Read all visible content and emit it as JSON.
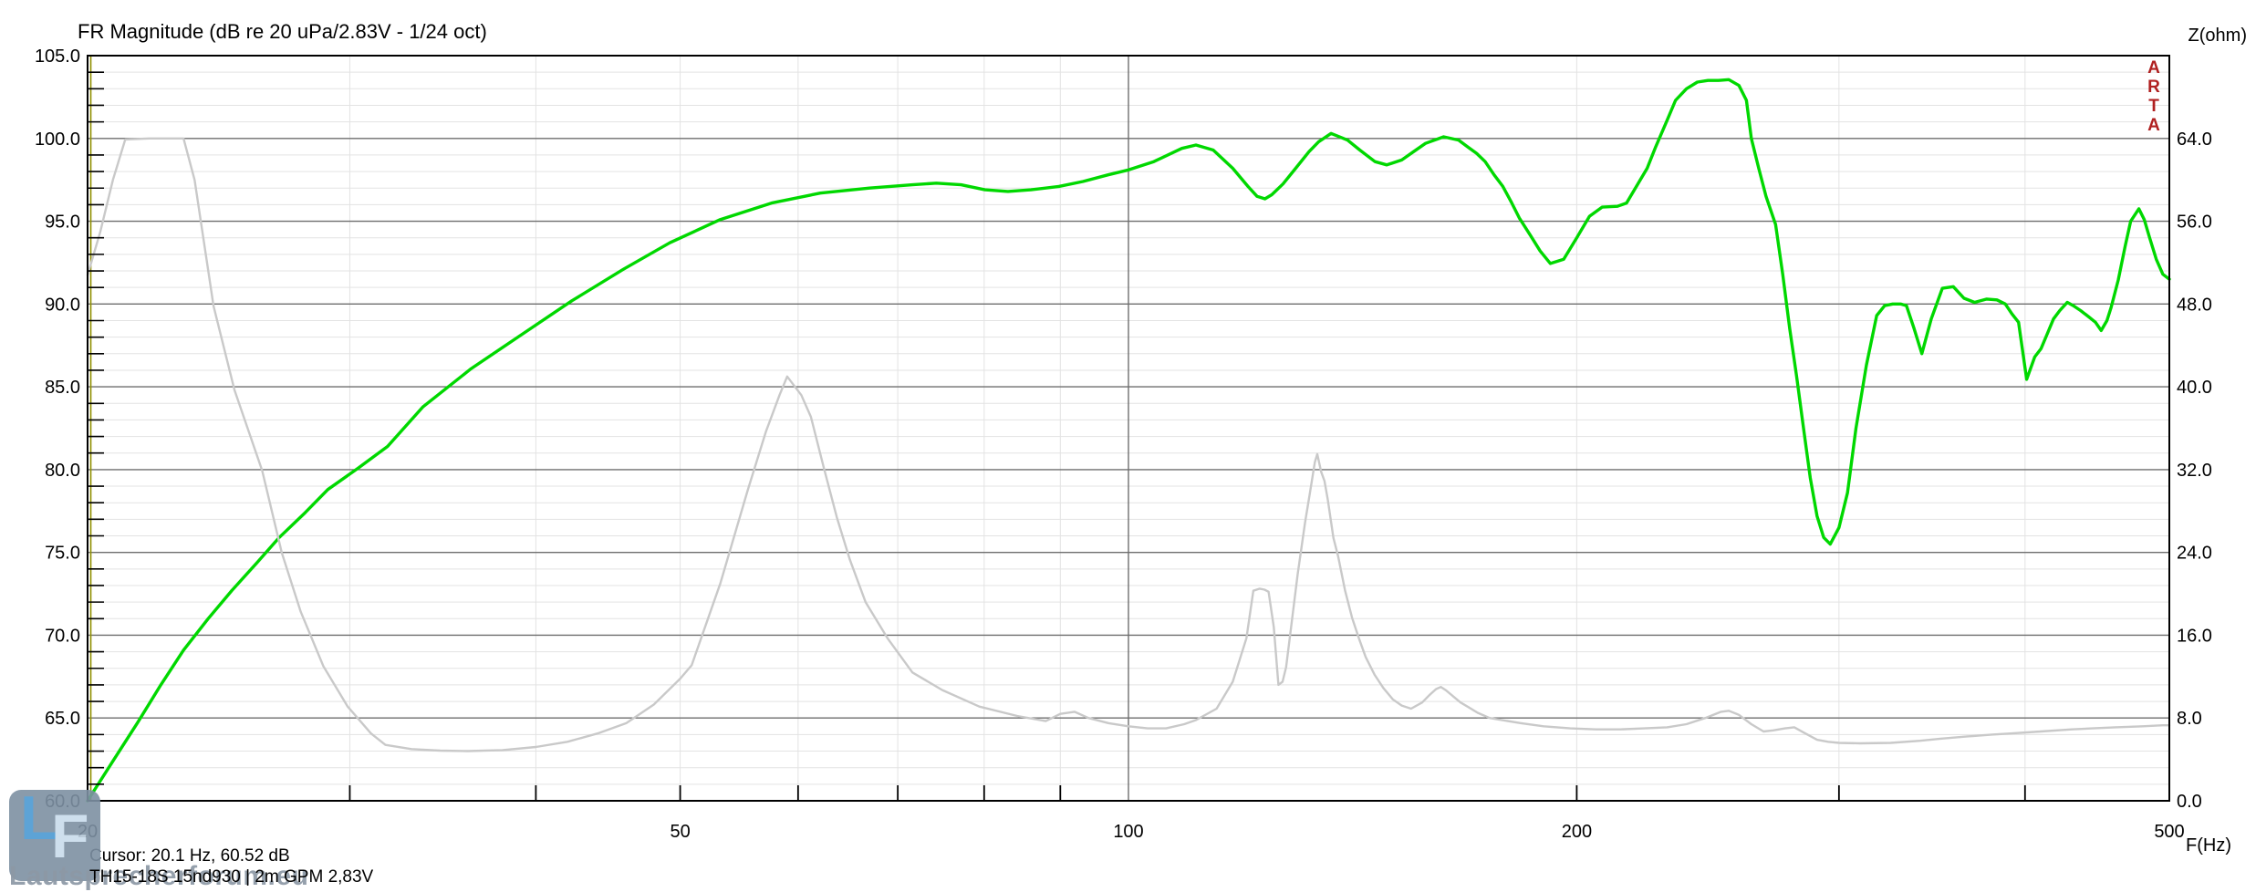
{
  "header": {
    "title": "FR Magnitude (dB re 20 uPa/2.83V - 1/24 oct)",
    "z_axis_label": "Z(ohm)"
  },
  "footer": {
    "f_axis_label": "F(Hz)",
    "cursor_text": "Cursor: 20.1 Hz, 60.52 dB",
    "info_text": "TH15-18S 15nd930   |   2m GPM 2,83V"
  },
  "branding": {
    "vertical_label": "ARTA",
    "color": "#b02020"
  },
  "watermark": {
    "logo_l": "L",
    "logo_f": "F",
    "text": "Lautsprecherforum.eu"
  },
  "chart_data": {
    "type": "line",
    "title": "FR Magnitude (dB re 20 uPa/2.83V - 1/24 oct)",
    "x_scale": "log",
    "grid": true,
    "x_axis": {
      "label": "F(Hz)",
      "min": 20,
      "max": 500,
      "tick_values": [
        20,
        50,
        100,
        200,
        500
      ],
      "tick_labels": [
        "20",
        "50",
        "100",
        "200",
        "500"
      ],
      "minor_gridlines": [
        30,
        40,
        50,
        60,
        70,
        80,
        90,
        200,
        300,
        400
      ],
      "major_gridlines": [
        100
      ]
    },
    "y_left_axis": {
      "label": "dB",
      "min": 60,
      "max": 105,
      "minor_step": 1,
      "major_step": 5,
      "tick_labels": [
        "105.0",
        "100.0",
        "95.0",
        "90.0",
        "85.0",
        "80.0",
        "75.0",
        "70.0",
        "65.0",
        "60.0"
      ]
    },
    "y_right_axis": {
      "label": "Z(ohm)",
      "min": 0,
      "max": 72,
      "label_step": 8,
      "tick_labels": [
        "64.0",
        "56.0",
        "48.0",
        "40.0",
        "32.0",
        "24.0",
        "16.0",
        "8.0",
        "0.0"
      ]
    },
    "cursor": {
      "frequency_hz": 20.1,
      "level_db": 60.52,
      "color": "#8f8f00"
    },
    "colors": {
      "spl": "#00d800",
      "impedance": "#c9c9c9",
      "grid_minor": "#e3e3e3",
      "grid_major": "#6e6e6e",
      "border": "#000000"
    },
    "series": [
      {
        "name": "FR Magnitude",
        "axis": "left",
        "unit": "dB",
        "color": "#00d800",
        "points": [
          [
            20,
            60
          ],
          [
            20.8,
            62.4
          ],
          [
            21.6,
            64.7
          ],
          [
            22.4,
            67
          ],
          [
            23.2,
            69.1
          ],
          [
            24.1,
            71
          ],
          [
            25,
            72.7
          ],
          [
            26,
            74.4
          ],
          [
            26.9,
            75.9
          ],
          [
            28,
            77.4
          ],
          [
            29,
            78.8
          ],
          [
            30.4,
            80.1
          ],
          [
            31.8,
            81.4
          ],
          [
            33.6,
            83.8
          ],
          [
            36.2,
            86.1
          ],
          [
            39.2,
            88.2
          ],
          [
            42.3,
            90.2
          ],
          [
            45.8,
            92.1
          ],
          [
            49.2,
            93.7
          ],
          [
            53.2,
            95.1
          ],
          [
            57.6,
            96.1
          ],
          [
            62.1,
            96.7
          ],
          [
            67,
            97
          ],
          [
            71.6,
            97.2
          ],
          [
            74.3,
            97.3
          ],
          [
            77.2,
            97.2
          ],
          [
            80.1,
            96.9
          ],
          [
            83,
            96.8
          ],
          [
            86,
            96.9
          ],
          [
            89.8,
            97.1
          ],
          [
            93.2,
            97.4
          ],
          [
            96.9,
            97.8
          ],
          [
            100,
            98.1
          ],
          [
            104,
            98.6
          ],
          [
            108.6,
            99.4
          ],
          [
            111,
            99.6
          ],
          [
            114,
            99.3
          ],
          [
            117.5,
            98.2
          ],
          [
            120.3,
            97.1
          ],
          [
            122,
            96.5
          ],
          [
            123.5,
            96.35
          ],
          [
            124.8,
            96.6
          ],
          [
            127,
            97.25
          ],
          [
            129.5,
            98.2
          ],
          [
            132.2,
            99.2
          ],
          [
            134.2,
            99.8
          ],
          [
            136.8,
            100.3
          ],
          [
            140.3,
            99.9
          ],
          [
            143,
            99.3
          ],
          [
            146.4,
            98.6
          ],
          [
            149.1,
            98.4
          ],
          [
            152.6,
            98.7
          ],
          [
            155.4,
            99.2
          ],
          [
            158.3,
            99.7
          ],
          [
            162.8,
            100.1
          ],
          [
            166.6,
            99.9
          ],
          [
            168.9,
            99.5
          ],
          [
            171.3,
            99.1
          ],
          [
            173.6,
            98.6
          ],
          [
            176,
            97.8
          ],
          [
            178.4,
            97.1
          ],
          [
            180.9,
            96.1
          ],
          [
            183,
            95.2
          ],
          [
            186,
            94.2
          ],
          [
            189,
            93.2
          ],
          [
            192,
            92.45
          ],
          [
            196,
            92.7
          ],
          [
            200,
            94
          ],
          [
            204,
            95.3
          ],
          [
            208,
            95.85
          ],
          [
            213,
            95.9
          ],
          [
            216,
            96.1
          ],
          [
            219,
            97
          ],
          [
            223,
            98.2
          ],
          [
            226,
            99.5
          ],
          [
            230,
            101.1
          ],
          [
            233,
            102.3
          ],
          [
            237,
            103
          ],
          [
            241,
            103.4
          ],
          [
            245,
            103.5
          ],
          [
            249,
            103.5
          ],
          [
            253,
            103.55
          ],
          [
            257,
            103.2
          ],
          [
            260,
            102.3
          ],
          [
            262,
            100
          ],
          [
            265,
            98.2
          ],
          [
            268,
            96.5
          ],
          [
            272,
            94.8
          ],
          [
            275,
            91.8
          ],
          [
            278,
            88.5
          ],
          [
            281,
            85.6
          ],
          [
            284,
            82.5
          ],
          [
            287,
            79.5
          ],
          [
            290,
            77.2
          ],
          [
            293,
            75.9
          ],
          [
            296,
            75.5
          ],
          [
            300,
            76.5
          ],
          [
            304,
            78.6
          ],
          [
            308,
            82.5
          ],
          [
            313,
            86.3
          ],
          [
            318,
            89.3
          ],
          [
            322,
            89.9
          ],
          [
            326,
            90
          ],
          [
            330,
            90
          ],
          [
            333,
            89.9
          ],
          [
            337,
            88.5
          ],
          [
            341,
            87
          ],
          [
            346,
            89.1
          ],
          [
            352,
            90.95
          ],
          [
            358,
            91.05
          ],
          [
            364,
            90.35
          ],
          [
            370,
            90.1
          ],
          [
            377,
            90.3
          ],
          [
            383,
            90.25
          ],
          [
            388,
            90
          ],
          [
            392,
            89.4
          ],
          [
            396,
            88.9
          ],
          [
            401,
            85.45
          ],
          [
            406,
            86.8
          ],
          [
            410,
            87.3
          ],
          [
            414,
            88.2
          ],
          [
            418,
            89.1
          ],
          [
            422,
            89.6
          ],
          [
            427,
            90.1
          ],
          [
            431,
            89.9
          ],
          [
            436,
            89.6
          ],
          [
            441,
            89.25
          ],
          [
            446,
            88.9
          ],
          [
            450,
            88.4
          ],
          [
            454,
            89
          ],
          [
            457,
            89.8
          ],
          [
            462,
            91.45
          ],
          [
            467,
            93.5
          ],
          [
            471,
            95
          ],
          [
            477,
            95.75
          ],
          [
            481,
            95.1
          ],
          [
            485,
            94
          ],
          [
            490,
            92.7
          ],
          [
            495,
            91.8
          ],
          [
            500,
            91.5
          ]
        ]
      },
      {
        "name": "Impedance",
        "axis": "right",
        "unit": "ohm",
        "color": "#c9c9c9",
        "points": [
          [
            20,
            50.8
          ],
          [
            20.4,
            55
          ],
          [
            20.8,
            60
          ],
          [
            21.2,
            63.9
          ],
          [
            22,
            64
          ],
          [
            23.2,
            64
          ],
          [
            23.6,
            60
          ],
          [
            24.3,
            47.8
          ],
          [
            25.1,
            39.7
          ],
          [
            26.2,
            31.9
          ],
          [
            27,
            24
          ],
          [
            27.8,
            18.3
          ],
          [
            28.8,
            13
          ],
          [
            29.9,
            9.1
          ],
          [
            31,
            6.5
          ],
          [
            31.7,
            5.4
          ],
          [
            33,
            5
          ],
          [
            34.5,
            4.85
          ],
          [
            36,
            4.8
          ],
          [
            38,
            4.9
          ],
          [
            40,
            5.2
          ],
          [
            42,
            5.7
          ],
          [
            44,
            6.5
          ],
          [
            46,
            7.5
          ],
          [
            48,
            9.3
          ],
          [
            50,
            11.8
          ],
          [
            50.9,
            13.1
          ],
          [
            53.2,
            21
          ],
          [
            55.5,
            30
          ],
          [
            57.1,
            35.7
          ],
          [
            58.3,
            39.2
          ],
          [
            59,
            41
          ],
          [
            60.3,
            39.2
          ],
          [
            61.2,
            37.1
          ],
          [
            62.4,
            32.3
          ],
          [
            63.7,
            27.4
          ],
          [
            65,
            23.3
          ],
          [
            66.6,
            19.2
          ],
          [
            68.9,
            15.7
          ],
          [
            71.6,
            12.4
          ],
          [
            75,
            10.7
          ],
          [
            79.4,
            9.1
          ],
          [
            84.2,
            8.2
          ],
          [
            88,
            7.7
          ],
          [
            90,
            8.4
          ],
          [
            92,
            8.6
          ],
          [
            94,
            8
          ],
          [
            97,
            7.5
          ],
          [
            100,
            7.2
          ],
          [
            103,
            7
          ],
          [
            106,
            7
          ],
          [
            109,
            7.4
          ],
          [
            111,
            7.8
          ],
          [
            114.6,
            8.9
          ],
          [
            117.5,
            11.5
          ],
          [
            120,
            15.7
          ],
          [
            121.3,
            20.3
          ],
          [
            122.5,
            20.5
          ],
          [
            123.4,
            20.4
          ],
          [
            124.2,
            20.2
          ],
          [
            125.2,
            16.8
          ],
          [
            126.1,
            11.2
          ],
          [
            126.9,
            11.5
          ],
          [
            127.6,
            12.9
          ],
          [
            128.4,
            16
          ],
          [
            129.9,
            21.9
          ],
          [
            131.4,
            26.9
          ],
          [
            132.4,
            29.8
          ],
          [
            133.4,
            32.7
          ],
          [
            133.9,
            33.5
          ],
          [
            134.7,
            31.8
          ],
          [
            135.4,
            30.9
          ],
          [
            136.1,
            29.1
          ],
          [
            137.3,
            25.4
          ],
          [
            138.3,
            23.6
          ],
          [
            139.8,
            20.3
          ],
          [
            141.3,
            17.7
          ],
          [
            142.8,
            15.7
          ],
          [
            144.3,
            13.9
          ],
          [
            146.3,
            12.2
          ],
          [
            148.3,
            10.9
          ],
          [
            150.5,
            9.8
          ],
          [
            152.6,
            9.2
          ],
          [
            154.8,
            8.9
          ],
          [
            157.5,
            9.5
          ],
          [
            159.2,
            10.2
          ],
          [
            160.9,
            10.8
          ],
          [
            162.1,
            11
          ],
          [
            163.3,
            10.7
          ],
          [
            165.2,
            10.1
          ],
          [
            167.1,
            9.5
          ],
          [
            168.9,
            9.1
          ],
          [
            171.6,
            8.5
          ],
          [
            174.8,
            8
          ],
          [
            178.1,
            7.8
          ],
          [
            183.5,
            7.5
          ],
          [
            190,
            7.2
          ],
          [
            198,
            7
          ],
          [
            206,
            6.9
          ],
          [
            214,
            6.9
          ],
          [
            222,
            7
          ],
          [
            230,
            7.1
          ],
          [
            237,
            7.4
          ],
          [
            244,
            8
          ],
          [
            250,
            8.6
          ],
          [
            253,
            8.7
          ],
          [
            257,
            8.3
          ],
          [
            262,
            7.4
          ],
          [
            267,
            6.7
          ],
          [
            271,
            6.8
          ],
          [
            276,
            7
          ],
          [
            280,
            7.1
          ],
          [
            284,
            6.6
          ],
          [
            290,
            5.9
          ],
          [
            295,
            5.7
          ],
          [
            300,
            5.6
          ],
          [
            310,
            5.55
          ],
          [
            325,
            5.6
          ],
          [
            340,
            5.8
          ],
          [
            351,
            6
          ],
          [
            365,
            6.2
          ],
          [
            380,
            6.4
          ],
          [
            391,
            6.5
          ],
          [
            410,
            6.7
          ],
          [
            430,
            6.9
          ],
          [
            444,
            7
          ],
          [
            460,
            7.1
          ],
          [
            480,
            7.2
          ],
          [
            495,
            7.3
          ],
          [
            500,
            7.3
          ]
        ]
      }
    ]
  }
}
